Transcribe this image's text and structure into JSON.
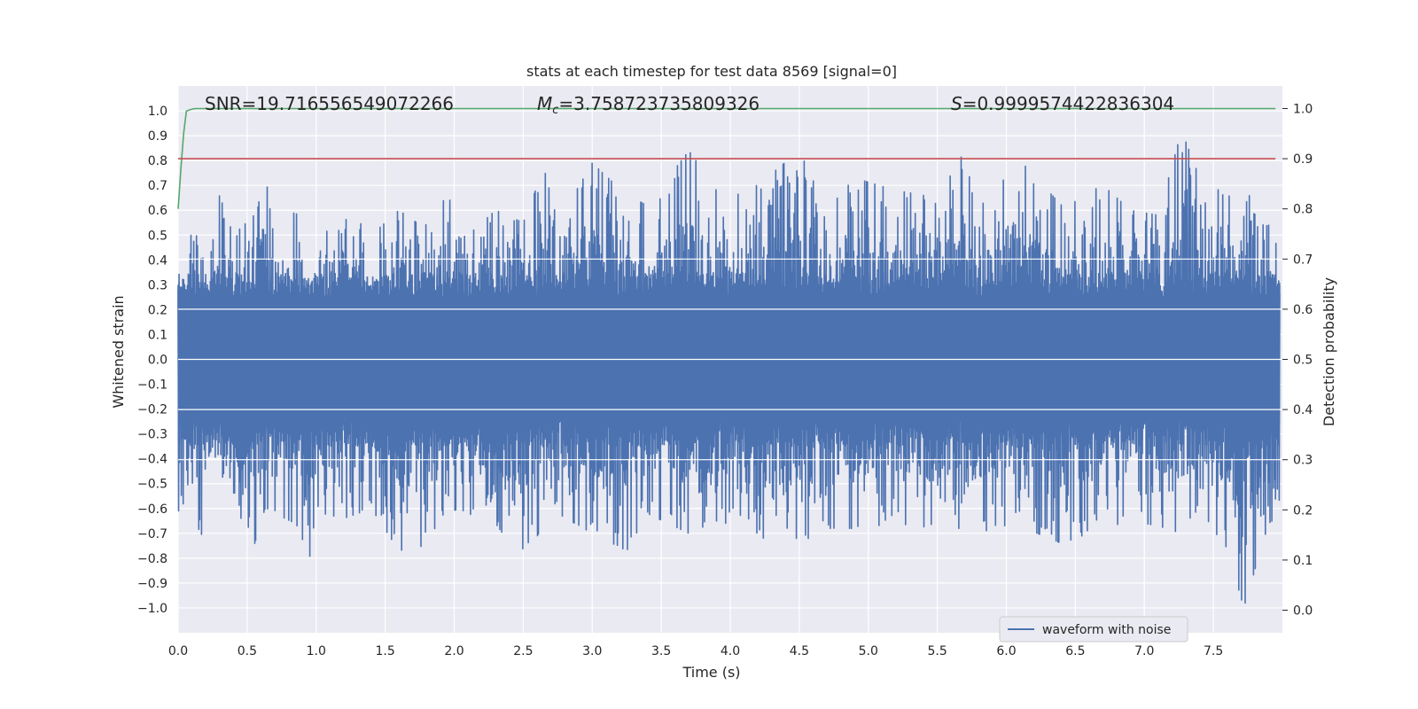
{
  "chart_data": {
    "type": "line",
    "title": "stats at each timestep for test data 8569 [signal=0]",
    "xlabel": "Time (s)",
    "ylabel": "Whitened strain",
    "y2label": "Detection probability",
    "xlim": [
      0.0,
      8.0
    ],
    "ylim": [
      -1.1,
      1.1
    ],
    "y2lim": [
      -0.045,
      1.045
    ],
    "x_ticks": [
      "0.0",
      "0.5",
      "1.0",
      "1.5",
      "2.0",
      "2.5",
      "3.0",
      "3.5",
      "4.0",
      "4.5",
      "5.0",
      "5.5",
      "6.0",
      "6.5",
      "7.0",
      "7.5"
    ],
    "y_ticks": [
      "1.0",
      "0.9",
      "0.8",
      "0.7",
      "0.6",
      "0.5",
      "0.4",
      "0.3",
      "0.2",
      "0.1",
      "0.0",
      "−0.1",
      "−0.2",
      "−0.3",
      "−0.4",
      "−0.5",
      "−0.6",
      "−0.7",
      "−0.8",
      "−0.9",
      "−1.0"
    ],
    "y2_ticks": [
      "1.0",
      "0.9",
      "0.8",
      "0.7",
      "0.6",
      "0.5",
      "0.4",
      "0.3",
      "0.2",
      "0.1",
      "0.0"
    ],
    "grid": true,
    "legend_position": "lower-right",
    "annotations": {
      "snr": "SNR=19.716556549072266",
      "mc_symbol": "M",
      "mc_sub": "c",
      "mc_value": "=3.758723735809326",
      "s_symbol": "S",
      "s_value": "=0.9999574422836304"
    },
    "series": [
      {
        "name": "waveform with noise",
        "axis": "left",
        "color": "#4c72b0",
        "envelope": {
          "description_values": "approximate upper/lower envelope of dense noise",
          "x": [
            0.0,
            0.05,
            0.1,
            0.16,
            0.22,
            0.3,
            0.4,
            0.55,
            0.63,
            0.7,
            0.85,
            1.0,
            1.05,
            1.2,
            1.4,
            1.6,
            1.78,
            1.95,
            2.1,
            2.3,
            2.5,
            2.65,
            2.75,
            3.0,
            3.25,
            3.4,
            3.7,
            3.9,
            4.1,
            4.35,
            4.5,
            4.7,
            4.9,
            5.2,
            5.5,
            5.7,
            5.78,
            6.05,
            6.4,
            6.7,
            6.9,
            7.1,
            7.27,
            7.45,
            7.6,
            7.72,
            7.9,
            8.0
          ],
          "upper": [
            0.52,
            0.44,
            0.62,
            0.48,
            0.45,
            0.66,
            0.5,
            0.58,
            0.86,
            0.46,
            0.6,
            0.49,
            0.56,
            0.62,
            0.5,
            0.6,
            0.53,
            0.66,
            0.5,
            0.6,
            0.55,
            0.77,
            0.55,
            0.79,
            0.66,
            0.62,
            0.84,
            0.68,
            0.66,
            0.77,
            0.84,
            0.6,
            0.73,
            0.68,
            0.65,
            0.84,
            0.58,
            0.83,
            0.62,
            0.7,
            0.6,
            0.58,
            0.92,
            0.66,
            0.7,
            0.72,
            0.54,
            0.44
          ],
          "lower": [
            -0.62,
            -0.66,
            -0.58,
            -0.72,
            -0.7,
            -0.58,
            -0.6,
            -0.75,
            -0.6,
            -0.62,
            -0.66,
            -0.85,
            -0.62,
            -0.64,
            -0.6,
            -0.77,
            -0.75,
            -0.6,
            -0.62,
            -0.66,
            -0.82,
            -0.66,
            -0.62,
            -0.7,
            -0.77,
            -0.62,
            -0.7,
            -0.65,
            -0.72,
            -0.72,
            -0.74,
            -0.68,
            -0.68,
            -0.66,
            -0.68,
            -0.68,
            -0.7,
            -0.66,
            -0.74,
            -0.68,
            -0.65,
            -0.67,
            -0.7,
            -0.65,
            -0.76,
            -1.0,
            -0.66,
            -0.62
          ]
        }
      },
      {
        "name": "",
        "axis": "right",
        "color": "#55a868",
        "x": [
          0.0,
          0.02,
          0.04,
          0.06,
          0.09,
          0.12,
          0.2,
          1.0,
          4.0,
          8.0
        ],
        "y": [
          0.8,
          0.88,
          0.95,
          0.995,
          0.998,
          1.0,
          1.0,
          1.0,
          1.0,
          1.0
        ]
      },
      {
        "name": "",
        "axis": "right",
        "color": "#c44e52",
        "x": [
          0.0,
          8.0
        ],
        "y": [
          0.9,
          0.9
        ]
      }
    ]
  }
}
